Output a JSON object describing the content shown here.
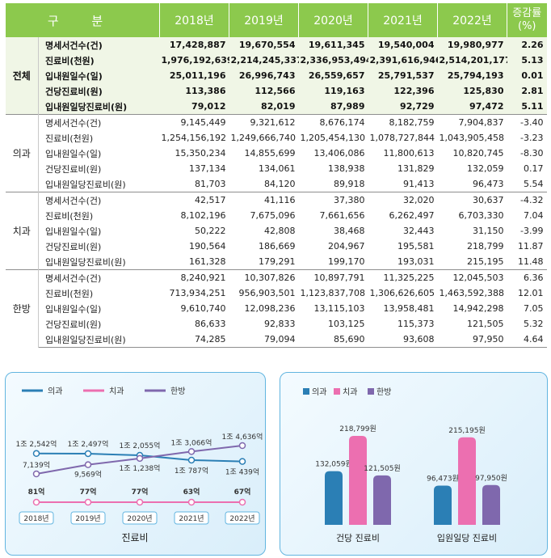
{
  "table": {
    "header": [
      "구 분",
      "2018년",
      "2019년",
      "2020년",
      "2021년",
      "2022년",
      "증감률 (%)"
    ],
    "header_rate_line1": "증감률",
    "header_rate_line2": "(%)",
    "groups": [
      {
        "name": "전체",
        "rows": [
          {
            "item": "명세서건수(건)",
            "values": [
              "17,428,887",
              "19,670,554",
              "19,611,345",
              "19,540,004",
              "19,980,977",
              "2.26"
            ]
          },
          {
            "item": "진료비(천원)",
            "values": [
              "1,976,192,639",
              "2,214,245,337",
              "2,336,953,494",
              "2,391,616,946",
              "2,514,201,177",
              "5.13"
            ]
          },
          {
            "item": "입내원일수(일)",
            "values": [
              "25,011,196",
              "26,996,743",
              "26,559,657",
              "25,791,537",
              "25,794,193",
              "0.01"
            ]
          },
          {
            "item": "건당진료비(원)",
            "values": [
              "113,386",
              "112,566",
              "119,163",
              "122,396",
              "125,830",
              "2.81"
            ]
          },
          {
            "item": "입내원일당진료비(원)",
            "values": [
              "79,012",
              "82,019",
              "87,989",
              "92,729",
              "97,472",
              "5.11"
            ]
          }
        ]
      },
      {
        "name": "의과",
        "rows": [
          {
            "item": "명세서건수(건)",
            "values": [
              "9,145,449",
              "9,321,612",
              "8,676,174",
              "8,182,759",
              "7,904,837",
              "-3.40"
            ]
          },
          {
            "item": "진료비(천원)",
            "values": [
              "1,254,156,192",
              "1,249,666,740",
              "1,205,454,130",
              "1,078,727,844",
              "1,043,905,458",
              "-3.23"
            ]
          },
          {
            "item": "입내원일수(일)",
            "values": [
              "15,350,234",
              "14,855,699",
              "13,406,086",
              "11,800,613",
              "10,820,745",
              "-8.30"
            ]
          },
          {
            "item": "건당진료비(원)",
            "values": [
              "137,134",
              "134,061",
              "138,938",
              "131,829",
              "132,059",
              "0.17"
            ]
          },
          {
            "item": "입내원일당진료비(원)",
            "values": [
              "81,703",
              "84,120",
              "89,918",
              "91,413",
              "96,473",
              "5.54"
            ]
          }
        ]
      },
      {
        "name": "치과",
        "rows": [
          {
            "item": "명세서건수(건)",
            "values": [
              "42,517",
              "41,116",
              "37,380",
              "32,020",
              "30,637",
              "-4.32"
            ]
          },
          {
            "item": "진료비(천원)",
            "values": [
              "8,102,196",
              "7,675,096",
              "7,661,656",
              "6,262,497",
              "6,703,330",
              "7.04"
            ]
          },
          {
            "item": "입내원일수(일)",
            "values": [
              "50,222",
              "42,808",
              "38,468",
              "32,443",
              "31,150",
              "-3.99"
            ]
          },
          {
            "item": "건당진료비(원)",
            "values": [
              "190,564",
              "186,669",
              "204,967",
              "195,581",
              "218,799",
              "11.87"
            ]
          },
          {
            "item": "입내원일당진료비(원)",
            "values": [
              "161,328",
              "179,291",
              "199,170",
              "193,031",
              "215,195",
              "11.48"
            ]
          }
        ]
      },
      {
        "name": "한방",
        "rows": [
          {
            "item": "명세서건수(건)",
            "values": [
              "8,240,921",
              "10,307,826",
              "10,897,791",
              "11,325,225",
              "12,045,503",
              "6.36"
            ]
          },
          {
            "item": "진료비(천원)",
            "values": [
              "713,934,251",
              "956,903,501",
              "1,123,837,708",
              "1,306,626,605",
              "1,463,592,388",
              "12.01"
            ]
          },
          {
            "item": "입내원일수(일)",
            "values": [
              "9,610,740",
              "12,098,236",
              "13,115,103",
              "13,958,481",
              "14,942,298",
              "7.05"
            ]
          },
          {
            "item": "건당진료비(원)",
            "values": [
              "86,633",
              "92,833",
              "103,125",
              "115,373",
              "121,505",
              "5.32"
            ]
          },
          {
            "item": "입내원일당진료비(원)",
            "values": [
              "74,285",
              "79,094",
              "85,690",
              "93,608",
              "97,950",
              "4.64"
            ]
          }
        ]
      }
    ]
  },
  "chart_data": [
    {
      "type": "line",
      "xlabel": "진료비",
      "x": [
        "2018년",
        "2019년",
        "2020년",
        "2021년",
        "2022년"
      ],
      "series": [
        {
          "name": "의과",
          "color": "#2b7fb5",
          "values": [
            12542,
            12497,
            12055,
            10787,
            10439
          ],
          "labels": [
            "1조 2,542억",
            "1조 2,497억",
            "1조 2,055억",
            "1조 787억",
            "1조 439억"
          ]
        },
        {
          "name": "치과",
          "color": "#ec6fb0",
          "values": [
            81,
            77,
            77,
            63,
            67
          ],
          "labels": [
            "81억",
            "77억",
            "77억",
            "63억",
            "67억"
          ]
        },
        {
          "name": "한방",
          "color": "#7f68ad",
          "values": [
            7139,
            9569,
            11238,
            13066,
            14636
          ],
          "labels": [
            "7,139억",
            "9,569억",
            "1조 1,238억",
            "1조 3,066억",
            "1조 4,636억"
          ]
        }
      ]
    },
    {
      "type": "bar",
      "categories": [
        "건당 진료비",
        "입원일당 진료비"
      ],
      "series": [
        {
          "name": "의과",
          "color": "#2b7fb5",
          "values": [
            132059,
            96473
          ],
          "labels": [
            "132,059원",
            "96,473원"
          ]
        },
        {
          "name": "치과",
          "color": "#ec6fb0",
          "values": [
            218799,
            215195
          ],
          "labels": [
            "218,799원",
            "215,195원"
          ]
        },
        {
          "name": "한방",
          "color": "#7f68ad",
          "values": [
            121505,
            97950
          ],
          "labels": [
            "121,505원",
            "97,950원"
          ]
        }
      ]
    }
  ]
}
